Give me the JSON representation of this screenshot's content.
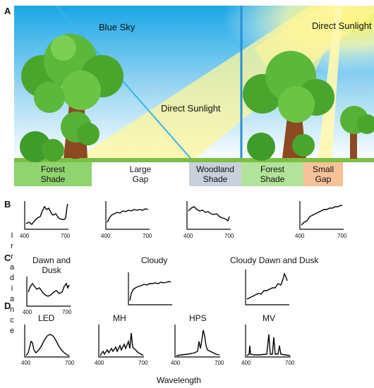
{
  "panel_a": {
    "letter": "A",
    "sky_label": "Blue Sky",
    "sunlight_label_center": "Direct Sunlight",
    "sunlight_label_right": "Direct Sunlight",
    "zones": [
      {
        "line1": "Forest",
        "line2": "Shade",
        "color": "#8fd46e"
      },
      {
        "line1": "Large",
        "line2": "Gap",
        "color": "#ffffff"
      },
      {
        "line1": "Woodland",
        "line2": "Shade",
        "color": "#c8d0dc"
      },
      {
        "line1": "Forest",
        "line2": "Shade",
        "color": "#b2e39a"
      },
      {
        "line1": "Small",
        "line2": "Gap",
        "color": "#f6c29a"
      }
    ]
  },
  "panel_b": {
    "letter": "B"
  },
  "panel_c": {
    "letter": "C",
    "labels": [
      {
        "line1": "Dawn and",
        "line2": "Dusk"
      },
      {
        "line1": "Cloudy",
        "line2": ""
      },
      {
        "line1": "Cloudy Dawn and Dusk",
        "line2": ""
      }
    ]
  },
  "panel_d": {
    "letter": "D",
    "labels": [
      "LED",
      "MH",
      "HPS",
      "MV"
    ]
  },
  "axis": {
    "x_start": "400",
    "x_end": "700",
    "ylabel_letters": [
      "I",
      "r",
      "r",
      "a",
      "d",
      "i",
      "a",
      "n",
      "c",
      "e"
    ],
    "xlabel": "Wavelength"
  }
}
